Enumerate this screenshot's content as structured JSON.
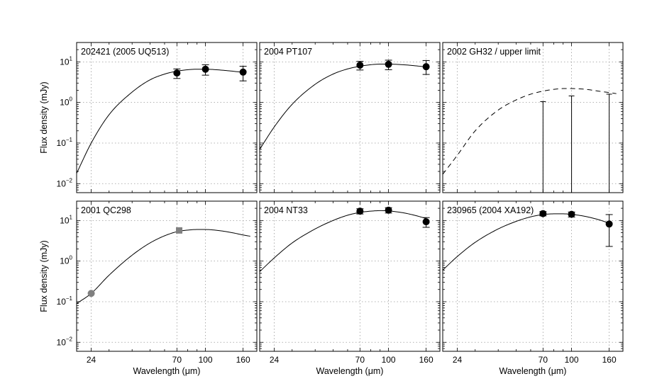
{
  "chart_data": {
    "type": "scatter",
    "layout": "2x3 grid of log-log panels with thermal model curves",
    "x_axis": {
      "label": "Wavelength (μm)",
      "scale": "log",
      "xlim": [
        20,
        190
      ],
      "tick_values": [
        24,
        70,
        100,
        160
      ],
      "tick_labels": [
        "24",
        "70",
        "100",
        "160"
      ]
    },
    "y_axis": {
      "label": "Flux density (mJy)",
      "scale": "log",
      "ylim": [
        0.006,
        30
      ],
      "tick_values": [
        0.01,
        0.1,
        1,
        10
      ],
      "tick_mantissa": "10",
      "tick_exponents": [
        "−2",
        "−1",
        "0",
        "1"
      ]
    },
    "grid": true,
    "panels": [
      {
        "title": "202421 (2005 UQ513)",
        "model": {
          "style": "solid",
          "points": [
            [
              20,
              0.018
            ],
            [
              24,
              0.1
            ],
            [
              30,
              0.5
            ],
            [
              40,
              1.8
            ],
            [
              50,
              3.6
            ],
            [
              60,
              5.0
            ],
            [
              70,
              5.9
            ],
            [
              80,
              6.4
            ],
            [
              90,
              6.6
            ],
            [
              100,
              6.6
            ],
            [
              120,
              6.3
            ],
            [
              140,
              5.9
            ],
            [
              160,
              5.5
            ]
          ]
        },
        "observations": [
          {
            "wavelength": 70,
            "flux": 5.3,
            "err_low": 1.4,
            "err_high": 1.4,
            "marker": "circle",
            "color": "#000000"
          },
          {
            "wavelength": 100,
            "flux": 6.6,
            "err_low": 1.9,
            "err_high": 1.9,
            "marker": "circle",
            "color": "#000000"
          },
          {
            "wavelength": 160,
            "flux": 5.6,
            "err_low": 2.2,
            "err_high": 2.2,
            "marker": "circle",
            "color": "#000000"
          }
        ]
      },
      {
        "title": "2004 PT107",
        "model": {
          "style": "solid",
          "points": [
            [
              20,
              0.07
            ],
            [
              24,
              0.25
            ],
            [
              30,
              0.9
            ],
            [
              40,
              2.8
            ],
            [
              50,
              5.0
            ],
            [
              60,
              6.7
            ],
            [
              70,
              7.8
            ],
            [
              80,
              8.5
            ],
            [
              90,
              8.8
            ],
            [
              100,
              8.8
            ],
            [
              120,
              8.5
            ],
            [
              140,
              8.0
            ],
            [
              160,
              7.5
            ]
          ]
        },
        "observations": [
          {
            "wavelength": 70,
            "flux": 8.3,
            "err_low": 2.0,
            "err_high": 2.0,
            "marker": "circle",
            "color": "#000000"
          },
          {
            "wavelength": 100,
            "flux": 8.7,
            "err_low": 2.3,
            "err_high": 2.3,
            "marker": "circle",
            "color": "#000000"
          },
          {
            "wavelength": 160,
            "flux": 7.6,
            "err_low": 2.7,
            "err_high": 3.2,
            "marker": "circle",
            "color": "#000000"
          }
        ]
      },
      {
        "title": "2002 GH32 / upper limit",
        "model": {
          "style": "dashed",
          "points": [
            [
              20,
              0.017
            ],
            [
              24,
              0.05
            ],
            [
              30,
              0.2
            ],
            [
              40,
              0.65
            ],
            [
              50,
              1.15
            ],
            [
              60,
              1.6
            ],
            [
              70,
              1.9
            ],
            [
              80,
              2.1
            ],
            [
              90,
              2.2
            ],
            [
              100,
              2.2
            ],
            [
              120,
              2.1
            ],
            [
              140,
              1.9
            ],
            [
              160,
              1.75
            ],
            [
              175,
              1.65
            ]
          ]
        },
        "upper_limits": [
          {
            "wavelength": 70,
            "limit": 1.05
          },
          {
            "wavelength": 100,
            "limit": 1.45
          },
          {
            "wavelength": 160,
            "limit": 1.6
          }
        ]
      },
      {
        "title": "2001 QC298",
        "model": {
          "style": "solid",
          "points": [
            [
              20,
              0.09
            ],
            [
              24,
              0.16
            ],
            [
              30,
              0.45
            ],
            [
              40,
              1.4
            ],
            [
              50,
              2.8
            ],
            [
              60,
              4.2
            ],
            [
              70,
              5.3
            ],
            [
              80,
              5.8
            ],
            [
              90,
              6.0
            ],
            [
              100,
              6.0
            ],
            [
              120,
              5.6
            ],
            [
              140,
              5.0
            ],
            [
              160,
              4.4
            ],
            [
              175,
              4.1
            ]
          ]
        },
        "observations": [
          {
            "wavelength": 24,
            "flux": 0.16,
            "err_low": 0,
            "err_high": 0,
            "marker": "circle",
            "color": "#808080"
          },
          {
            "wavelength": 72,
            "flux": 5.7,
            "err_low": 0,
            "err_high": 0,
            "marker": "square",
            "color": "#808080"
          }
        ]
      },
      {
        "title": "2004 NT33",
        "model": {
          "style": "solid",
          "points": [
            [
              20,
              0.55
            ],
            [
              24,
              1.2
            ],
            [
              30,
              2.8
            ],
            [
              40,
              6.2
            ],
            [
              50,
              10.0
            ],
            [
              60,
              13.5
            ],
            [
              70,
              15.8
            ],
            [
              80,
              17.0
            ],
            [
              90,
              17.5
            ],
            [
              100,
              17.2
            ],
            [
              120,
              15.5
            ],
            [
              140,
              13.3
            ],
            [
              160,
              11.2
            ]
          ]
        },
        "observations": [
          {
            "wavelength": 70,
            "flux": 17.0,
            "err_low": 2.5,
            "err_high": 2.5,
            "marker": "circle",
            "color": "#000000"
          },
          {
            "wavelength": 100,
            "flux": 18.0,
            "err_low": 2.7,
            "err_high": 2.7,
            "marker": "circle",
            "color": "#000000"
          },
          {
            "wavelength": 160,
            "flux": 9.3,
            "err_low": 2.5,
            "err_high": 2.5,
            "marker": "circle",
            "color": "#000000"
          }
        ]
      },
      {
        "title": "230965 (2004 XA192)",
        "model": {
          "style": "solid",
          "points": [
            [
              20,
              0.6
            ],
            [
              24,
              1.3
            ],
            [
              30,
              2.9
            ],
            [
              40,
              6.2
            ],
            [
              50,
              9.5
            ],
            [
              60,
              12.3
            ],
            [
              70,
              14.0
            ],
            [
              80,
              14.6
            ],
            [
              90,
              14.6
            ],
            [
              100,
              14.2
            ],
            [
              120,
              12.5
            ],
            [
              140,
              10.5
            ],
            [
              160,
              8.6
            ]
          ]
        },
        "observations": [
          {
            "wavelength": 70,
            "flux": 14.8,
            "err_low": 1.8,
            "err_high": 1.8,
            "marker": "circle",
            "color": "#000000"
          },
          {
            "wavelength": 100,
            "flux": 14.2,
            "err_low": 2.0,
            "err_high": 2.0,
            "marker": "circle",
            "color": "#000000"
          },
          {
            "wavelength": 160,
            "flux": 8.2,
            "err_low": 5.9,
            "err_high": 5.8,
            "marker": "circle",
            "color": "#000000"
          }
        ]
      }
    ]
  }
}
